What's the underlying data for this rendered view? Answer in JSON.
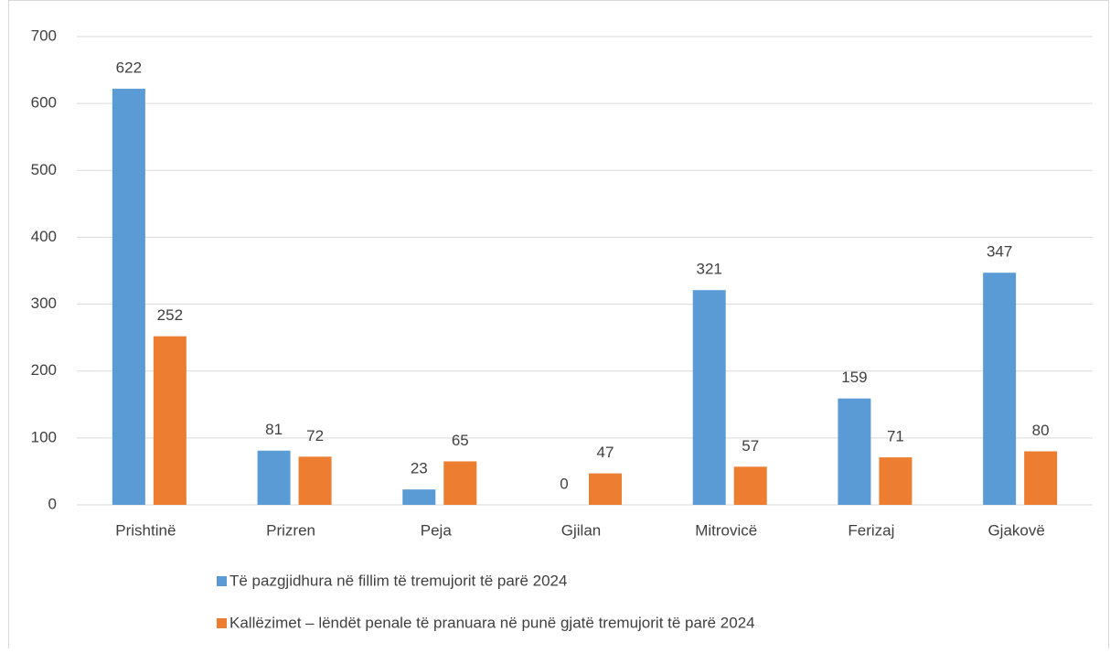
{
  "chart_data": {
    "type": "bar",
    "categories": [
      "Prishtinë",
      "Prizren",
      "Peja",
      "Gjilan",
      "Mitrovicë",
      "Ferizaj",
      "Gjakovë"
    ],
    "series": [
      {
        "name": "Të pazgjidhura në fillim të tremujorit të parë 2024",
        "color": "#5b9bd5",
        "values": [
          622,
          81,
          23,
          0,
          321,
          159,
          347
        ]
      },
      {
        "name": "Kallëzimet – lëndët penale të pranuara në punë gjatë tremujorit të parë 2024",
        "color": "#ed7d31",
        "values": [
          252,
          72,
          65,
          47,
          57,
          71,
          80
        ]
      }
    ],
    "ylim": [
      0,
      700
    ],
    "yticks": [
      0,
      100,
      200,
      300,
      400,
      500,
      600,
      700
    ],
    "grid": true,
    "legend": "bottom"
  }
}
